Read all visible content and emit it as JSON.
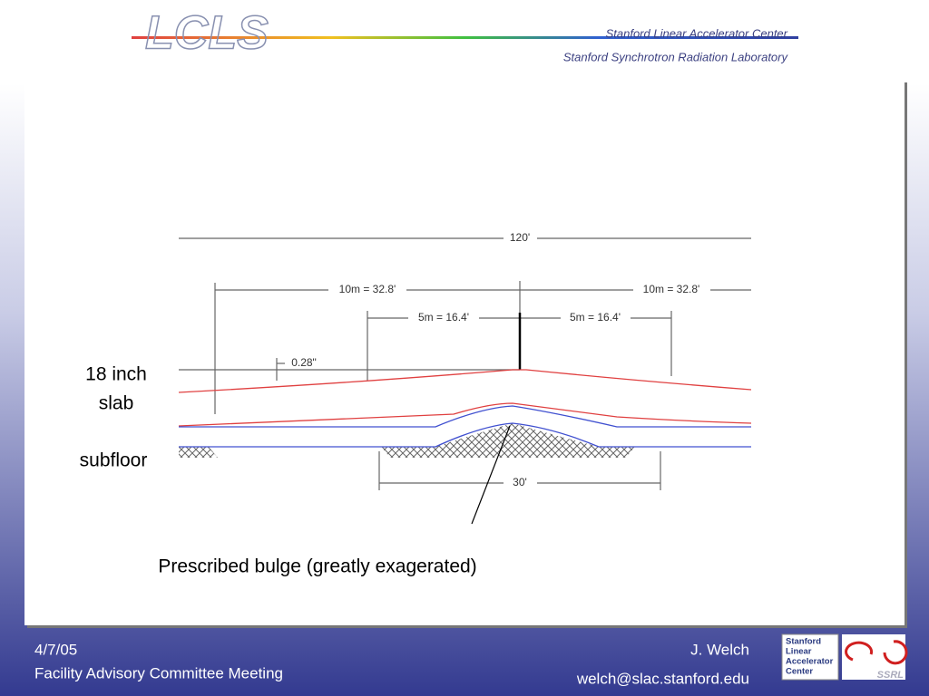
{
  "header": {
    "logo": "LCLS",
    "lab1": "Stanford Linear Accelerator Center",
    "lab2": "Stanford Synchrotron Radiation Laboratory"
  },
  "figure": {
    "dimensions": [
      "120'",
      "10m = 32.8'",
      "10m = 32.8'",
      "5m = 16.4'",
      "5m = 16.4'",
      "0.28\"",
      "30'"
    ],
    "labels": {
      "slab": [
        "18 inch",
        "slab"
      ],
      "subfloor": "subfloor",
      "bulge": "Prescribed bulge (greatly exagerated)"
    }
  },
  "footer": {
    "date": "4/7/05",
    "meeting": "Facility Advisory Committee Meeting",
    "author": "J. Welch",
    "email": "welch@slac.stanford.edu",
    "slac_logo": [
      "Stanford",
      "Linear",
      "Accelerator",
      "Center"
    ],
    "ssrl_logo": "SSRL"
  }
}
